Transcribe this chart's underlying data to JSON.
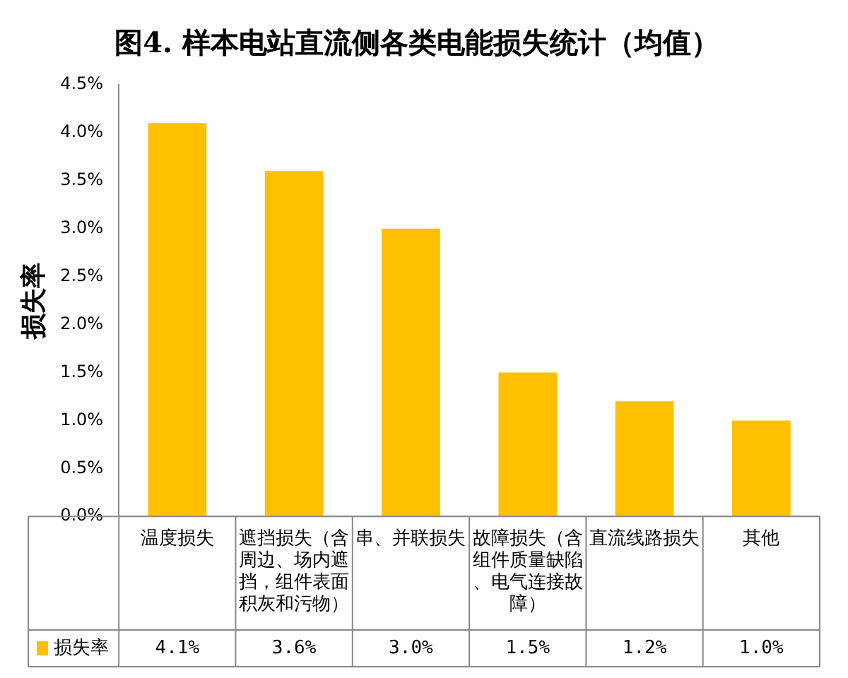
{
  "chart_data": {
    "type": "bar",
    "title": "图4. 样本电站直流侧各类电能损失统计（均值）",
    "ylabel": "损失率",
    "categories": [
      "温度损失",
      "遮挡损失（含周边、场内遮挡，组件表面积灰和污物）",
      "串、并联损失",
      "故障损失（含组件质量缺陷、电气连接故障）",
      "直流线路损失",
      "其他"
    ],
    "series": [
      {
        "name": "损失率",
        "color": "#ffc000",
        "values": [
          4.1,
          3.6,
          3.0,
          1.5,
          1.2,
          1.0
        ],
        "value_labels": [
          "4.1%",
          "3.6%",
          "3.0%",
          "1.5%",
          "1.2%",
          "1.0%"
        ]
      }
    ],
    "ylim": [
      0,
      4.5
    ],
    "yticks": [
      {
        "value": 0,
        "label": "0.0%"
      },
      {
        "value": 0.5,
        "label": "0.5%"
      },
      {
        "value": 1,
        "label": "1.0%"
      },
      {
        "value": 1.5,
        "label": "1.5%"
      },
      {
        "value": 2,
        "label": "2.0%"
      },
      {
        "value": 2.5,
        "label": "2.5%"
      },
      {
        "value": 3,
        "label": "3.0%"
      },
      {
        "value": 3.5,
        "label": "3.5%"
      },
      {
        "value": 4,
        "label": "4.0%"
      },
      {
        "value": 4.5,
        "label": "4.5%"
      }
    ],
    "grid": false,
    "legend": "bottom"
  }
}
